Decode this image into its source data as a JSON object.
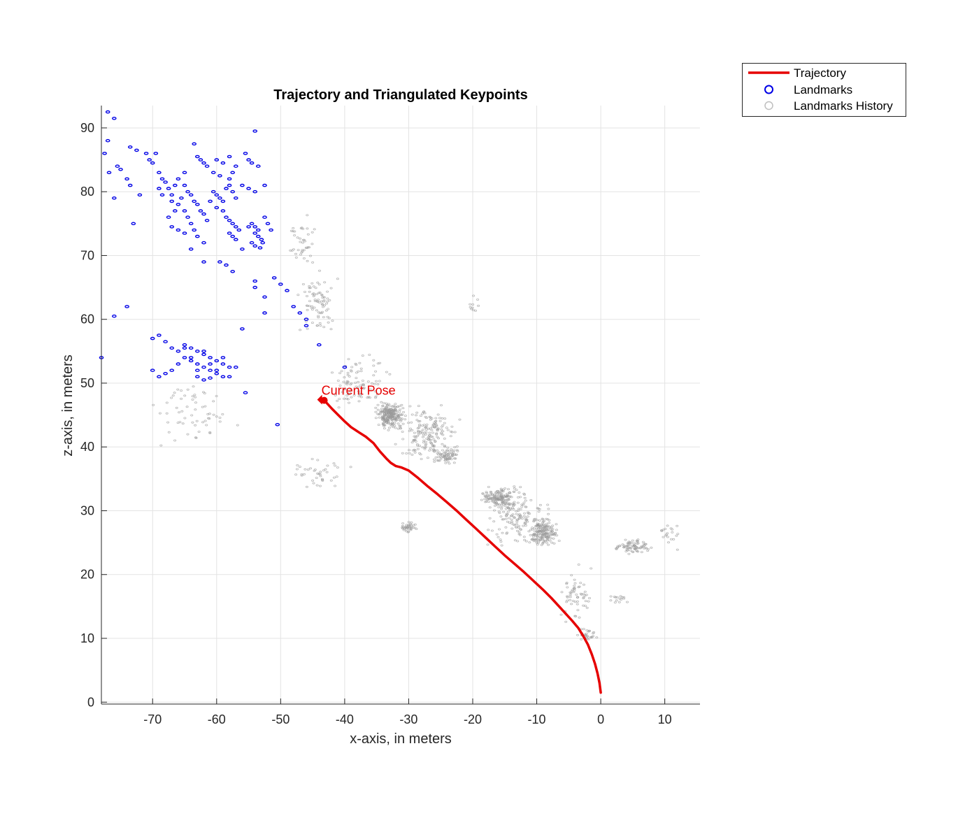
{
  "chart_data": {
    "type": "scatter",
    "title": "Trajectory and Triangulated Keypoints",
    "xlabel": "x-axis, in meters",
    "ylabel": "z-axis, in meters",
    "xlim": [
      -78,
      15.5
    ],
    "ylim": [
      -0.3,
      93.5
    ],
    "xticks": [
      -70,
      -60,
      -50,
      -40,
      -30,
      -20,
      -10,
      0,
      10
    ],
    "yticks": [
      0,
      10,
      20,
      30,
      40,
      50,
      60,
      70,
      80,
      90
    ],
    "grid": true,
    "legend_position": "outside-top-right",
    "legend": [
      {
        "label": "Trajectory",
        "marker": "line",
        "color": "#e60000"
      },
      {
        "label": "Landmarks",
        "marker": "circle",
        "color": "#0000e6"
      },
      {
        "label": "Landmarks History",
        "marker": "circle",
        "color": "#bfbfbf"
      }
    ],
    "annotation": {
      "text": "Current Pose",
      "x": -43.2,
      "y": 47.3,
      "color": "#e60000"
    },
    "series": [
      {
        "name": "Trajectory",
        "kind": "line",
        "color": "#e60000",
        "points": [
          [
            0,
            1.5
          ],
          [
            -0.2,
            3
          ],
          [
            -0.5,
            4.5
          ],
          [
            -0.9,
            6
          ],
          [
            -1.4,
            7.5
          ],
          [
            -2,
            9
          ],
          [
            -2.7,
            10.3
          ],
          [
            -3.5,
            11.6
          ],
          [
            -4.5,
            12.8
          ],
          [
            -5.5,
            13.9
          ],
          [
            -6.5,
            15
          ],
          [
            -7.7,
            16.3
          ],
          [
            -9,
            17.6
          ],
          [
            -10.5,
            19
          ],
          [
            -12,
            20.4
          ],
          [
            -13.5,
            21.7
          ],
          [
            -15,
            23
          ],
          [
            -16.5,
            24.4
          ],
          [
            -18,
            25.8
          ],
          [
            -19.5,
            27.2
          ],
          [
            -21,
            28.6
          ],
          [
            -22.5,
            30
          ],
          [
            -24,
            31.3
          ],
          [
            -25.5,
            32.6
          ],
          [
            -27,
            33.8
          ],
          [
            -28.5,
            35.1
          ],
          [
            -30,
            36.3
          ],
          [
            -31.2,
            36.8
          ],
          [
            -32,
            37
          ],
          [
            -32.8,
            37.5
          ],
          [
            -33.5,
            38.2
          ],
          [
            -34.5,
            39.3
          ],
          [
            -35.5,
            40.6
          ],
          [
            -36.7,
            41.6
          ],
          [
            -37.8,
            42.3
          ],
          [
            -39,
            43.1
          ],
          [
            -40,
            44
          ],
          [
            -41,
            45
          ],
          [
            -42,
            46
          ],
          [
            -43,
            47.1
          ]
        ]
      },
      {
        "name": "Landmarks",
        "kind": "markers",
        "color": "#0000e6",
        "points": [
          [
            -77,
            92.5
          ],
          [
            -76,
            91.5
          ],
          [
            -77,
            88
          ],
          [
            -77.5,
            86
          ],
          [
            -76.8,
            83
          ],
          [
            -75.5,
            84
          ],
          [
            -75,
            83.5
          ],
          [
            -74,
            82
          ],
          [
            -73.5,
            81
          ],
          [
            -72,
            79.5
          ],
          [
            -76,
            79
          ],
          [
            -73.5,
            87
          ],
          [
            -72.5,
            86.5
          ],
          [
            -71,
            86
          ],
          [
            -70.5,
            85
          ],
          [
            -70,
            84.5
          ],
          [
            -69.5,
            86
          ],
          [
            -69,
            83
          ],
          [
            -68.5,
            82
          ],
          [
            -68,
            81.5
          ],
          [
            -67.5,
            80.5
          ],
          [
            -67,
            79.5
          ],
          [
            -66.5,
            81
          ],
          [
            -69,
            80.5
          ],
          [
            -68.5,
            79.5
          ],
          [
            -67,
            78.5
          ],
          [
            -66.5,
            77
          ],
          [
            -65.5,
            79
          ],
          [
            -64.5,
            80
          ],
          [
            -64,
            79.5
          ],
          [
            -63.5,
            78.5
          ],
          [
            -63,
            78
          ],
          [
            -62.5,
            77
          ],
          [
            -62,
            76.5
          ],
          [
            -61.5,
            75.5
          ],
          [
            -61,
            78.5
          ],
          [
            -60.5,
            80
          ],
          [
            -60,
            79.5
          ],
          [
            -59.5,
            79
          ],
          [
            -59,
            78.5
          ],
          [
            -58.5,
            80.5
          ],
          [
            -58,
            81
          ],
          [
            -57.5,
            80
          ],
          [
            -57,
            79
          ],
          [
            -60,
            77.5
          ],
          [
            -59,
            77
          ],
          [
            -58.5,
            76
          ],
          [
            -58,
            75.5
          ],
          [
            -57.5,
            75
          ],
          [
            -57,
            74.5
          ],
          [
            -56.5,
            74
          ],
          [
            -58,
            73.5
          ],
          [
            -57.5,
            73
          ],
          [
            -57,
            72.5
          ],
          [
            -56,
            71
          ],
          [
            -54.5,
            75
          ],
          [
            -54,
            74.5
          ],
          [
            -53.5,
            74
          ],
          [
            -54,
            73.5
          ],
          [
            -53.5,
            73
          ],
          [
            -53,
            72.5
          ],
          [
            -52.8,
            72
          ],
          [
            -54.5,
            72
          ],
          [
            -54,
            71.5
          ],
          [
            -53.2,
            71.2
          ],
          [
            -55,
            74.5
          ],
          [
            -52.5,
            76
          ],
          [
            -52,
            75
          ],
          [
            -51.5,
            74
          ],
          [
            -63.5,
            87.5
          ],
          [
            -63,
            85.5
          ],
          [
            -62.5,
            85
          ],
          [
            -62,
            84.5
          ],
          [
            -61.5,
            84
          ],
          [
            -60.5,
            83
          ],
          [
            -59.5,
            82.5
          ],
          [
            -58,
            82
          ],
          [
            -57.5,
            83
          ],
          [
            -57,
            84
          ],
          [
            -55.5,
            86
          ],
          [
            -55,
            85
          ],
          [
            -54.5,
            84.5
          ],
          [
            -53.5,
            84
          ],
          [
            -54,
            89.5
          ],
          [
            -56,
            81
          ],
          [
            -55,
            80.5
          ],
          [
            -54,
            80
          ],
          [
            -52.5,
            81
          ],
          [
            -64.5,
            76
          ],
          [
            -64,
            75
          ],
          [
            -63.5,
            74
          ],
          [
            -63,
            73
          ],
          [
            -62,
            72
          ],
          [
            -64,
            71
          ],
          [
            -62,
            69
          ],
          [
            -59.5,
            69
          ],
          [
            -58.5,
            68.5
          ],
          [
            -57.5,
            67.5
          ],
          [
            -60,
            85
          ],
          [
            -59,
            84.5
          ],
          [
            -58,
            85.5
          ],
          [
            -66,
            82
          ],
          [
            -65,
            81
          ],
          [
            -65,
            83
          ],
          [
            -66,
            78
          ],
          [
            -65,
            77
          ],
          [
            -67.5,
            76
          ],
          [
            -67,
            74.5
          ],
          [
            -66,
            74
          ],
          [
            -65,
            73.5
          ],
          [
            -73,
            75
          ],
          [
            -74,
            62
          ],
          [
            -76,
            60.5
          ],
          [
            -54,
            66
          ],
          [
            -54,
            65
          ],
          [
            -52.5,
            61
          ],
          [
            -52.5,
            63.5
          ],
          [
            -51,
            66.5
          ],
          [
            -50,
            65.5
          ],
          [
            -49,
            64.5
          ],
          [
            -48,
            62
          ],
          [
            -47,
            61
          ],
          [
            -46,
            60
          ],
          [
            -46,
            59
          ],
          [
            -44,
            56
          ],
          [
            -40,
            52.5
          ],
          [
            -56,
            58.5
          ],
          [
            -55.5,
            48.5
          ],
          [
            -50.5,
            43.5
          ],
          [
            -78,
            54
          ],
          [
            -70,
            57
          ],
          [
            -69,
            57.5
          ],
          [
            -68,
            56.5
          ],
          [
            -67,
            55.5
          ],
          [
            -66,
            55
          ],
          [
            -65,
            56
          ],
          [
            -64,
            55.5
          ],
          [
            -63,
            55
          ],
          [
            -62,
            54.5
          ],
          [
            -61,
            54
          ],
          [
            -60,
            53.5
          ],
          [
            -59,
            53
          ],
          [
            -58,
            52.5
          ],
          [
            -65,
            54
          ],
          [
            -64,
            53.5
          ],
          [
            -63,
            53
          ],
          [
            -62,
            52.5
          ],
          [
            -61,
            52
          ],
          [
            -60,
            51.5
          ],
          [
            -59,
            51
          ],
          [
            -66,
            53
          ],
          [
            -67,
            52
          ],
          [
            -68,
            51.5
          ],
          [
            -69,
            51
          ],
          [
            -70,
            52
          ],
          [
            -63,
            51
          ],
          [
            -62,
            50.5
          ],
          [
            -61,
            50.8
          ],
          [
            -60,
            52
          ],
          [
            -59,
            54
          ],
          [
            -62,
            55
          ],
          [
            -63,
            52
          ],
          [
            -64,
            54
          ],
          [
            -61,
            53
          ],
          [
            -58,
            51
          ],
          [
            -57,
            52.5
          ],
          [
            -65,
            55.5
          ]
        ]
      },
      {
        "name": "Landmarks History",
        "kind": "markers",
        "color": "#9a9a9a",
        "clusters": [
          {
            "center": [
              -33,
              45
            ],
            "spread": [
              2.8,
              2.5
            ],
            "count": 240
          },
          {
            "center": [
              -16,
              32
            ],
            "spread": [
              3.0,
              2.0
            ],
            "count": 140
          },
          {
            "center": [
              -9,
              26.5
            ],
            "spread": [
              3.0,
              3.0
            ],
            "count": 170
          },
          {
            "center": [
              -24,
              38.5
            ],
            "spread": [
              2.5,
              2.0
            ],
            "count": 70
          },
          {
            "center": [
              -30,
              27.5
            ],
            "spread": [
              1.5,
              1.0
            ],
            "count": 40
          },
          {
            "center": [
              5,
              24.5
            ],
            "spread": [
              3.5,
              1.5
            ],
            "count": 80
          },
          {
            "center": [
              -27,
              42
            ],
            "spread": [
              6.0,
              6.0
            ],
            "count": 180
          },
          {
            "center": [
              -13,
              29
            ],
            "spread": [
              6.0,
              6.0
            ],
            "count": 160
          },
          {
            "center": [
              -38,
              51
            ],
            "spread": [
              6.0,
              6.0
            ],
            "count": 90
          },
          {
            "center": [
              -44,
              62
            ],
            "spread": [
              4.0,
              7.0
            ],
            "count": 80
          },
          {
            "center": [
              -47,
              72
            ],
            "spread": [
              3.0,
              5.0
            ],
            "count": 40
          },
          {
            "center": [
              -4,
              17
            ],
            "spread": [
              3.0,
              6.0
            ],
            "count": 60
          },
          {
            "center": [
              -63,
              45
            ],
            "spread": [
              9.0,
              6.0
            ],
            "count": 60
          },
          {
            "center": [
              -44,
              36
            ],
            "spread": [
              6.0,
              3.0
            ],
            "count": 40
          },
          {
            "center": [
              3,
              16
            ],
            "spread": [
              2.5,
              1.5
            ],
            "count": 15
          },
          {
            "center": [
              11,
              26
            ],
            "spread": [
              2.0,
              3.0
            ],
            "count": 20
          },
          {
            "center": [
              -20,
              62
            ],
            "spread": [
              1.5,
              3.0
            ],
            "count": 10
          },
          {
            "center": [
              -2,
              10.5
            ],
            "spread": [
              2.0,
              1.5
            ],
            "count": 30
          }
        ]
      }
    ]
  }
}
